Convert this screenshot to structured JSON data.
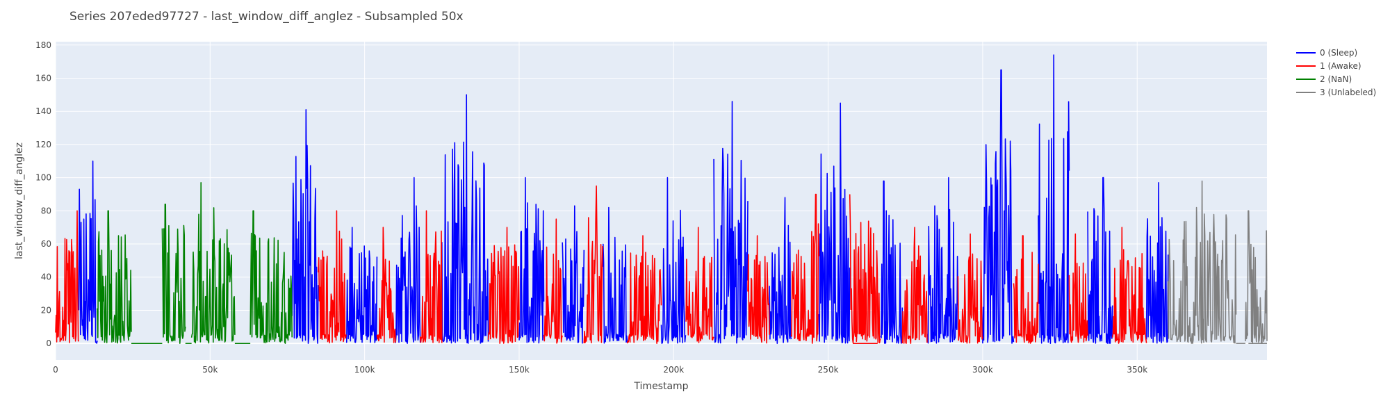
{
  "chart_data": {
    "type": "line",
    "title": "Series 207eded97727 - last_window_diff_anglez - Subsampled 50x",
    "xlabel": "Timestamp",
    "ylabel": "last_window_diff_anglez",
    "xlim": [
      0,
      392000
    ],
    "ylim": [
      -10,
      182
    ],
    "x_ticks": [
      0,
      50000,
      100000,
      150000,
      200000,
      250000,
      300000,
      350000
    ],
    "x_tick_labels": [
      "0",
      "50k",
      "100k",
      "150k",
      "200k",
      "250k",
      "300k",
      "350k"
    ],
    "y_ticks": [
      0,
      20,
      40,
      60,
      80,
      100,
      120,
      140,
      160,
      180
    ],
    "y_tick_labels": [
      "0",
      "20",
      "40",
      "60",
      "80",
      "100",
      "120",
      "140",
      "160",
      "180"
    ],
    "grid": true,
    "legend_position": "top-right",
    "series": [
      {
        "name": "0 (Sleep)",
        "color": "#0000ff",
        "segments": [
          {
            "x_range": [
              7500,
              13500
            ],
            "y_min": 0,
            "y_max": 110,
            "x_peak": 12000,
            "y_peak": 110
          },
          {
            "x_range": [
              76500,
              85000
            ],
            "y_min": 0,
            "y_max": 141,
            "x_peak": 81000,
            "y_peak": 141
          },
          {
            "x_range": [
              94000,
              104000
            ],
            "y_min": 0,
            "y_max": 70,
            "x_peak": 96000,
            "y_peak": 70
          },
          {
            "x_range": [
              110000,
              118000
            ],
            "y_min": 0,
            "y_max": 100,
            "x_peak": 116000,
            "y_peak": 100
          },
          {
            "x_range": [
              125000,
              140000
            ],
            "y_min": 0,
            "y_max": 150,
            "x_peak": 133000,
            "y_peak": 150
          },
          {
            "x_range": [
              150000,
              158000
            ],
            "y_min": 0,
            "y_max": 100,
            "x_peak": 152000,
            "y_peak": 100
          },
          {
            "x_range": [
              164000,
              171000
            ],
            "y_min": 0,
            "y_max": 83,
            "x_peak": 168000,
            "y_peak": 83
          },
          {
            "x_range": [
              177000,
              185000
            ],
            "y_min": 0,
            "y_max": 82,
            "x_peak": 179000,
            "y_peak": 82
          },
          {
            "x_range": [
              196000,
              204000
            ],
            "y_min": 0,
            "y_max": 100,
            "x_peak": 198000,
            "y_peak": 100
          },
          {
            "x_range": [
              213000,
              224000
            ],
            "y_min": 0,
            "y_max": 146,
            "x_peak": 219000,
            "y_peak": 146
          },
          {
            "x_range": [
              231000,
              238000
            ],
            "y_min": 0,
            "y_max": 88,
            "x_peak": 236000,
            "y_peak": 88
          },
          {
            "x_range": [
              247000,
              257000
            ],
            "y_min": 0,
            "y_max": 145,
            "x_peak": 254000,
            "y_peak": 145
          },
          {
            "x_range": [
              267000,
              274000
            ],
            "y_min": 0,
            "y_max": 98,
            "x_peak": 268000,
            "y_peak": 98
          },
          {
            "x_range": [
              282000,
              292000
            ],
            "y_min": 0,
            "y_max": 100,
            "x_peak": 289000,
            "y_peak": 100
          },
          {
            "x_range": [
              300000,
              310000
            ],
            "y_min": 0,
            "y_max": 165,
            "x_peak": 306000,
            "y_peak": 165
          },
          {
            "x_range": [
              318000,
              328000
            ],
            "y_min": 0,
            "y_max": 174,
            "x_peak": 323000,
            "y_peak": 174
          },
          {
            "x_range": [
              334000,
              342000
            ],
            "y_min": 0,
            "y_max": 100,
            "x_peak": 339000,
            "y_peak": 100
          },
          {
            "x_range": [
              353000,
              360000
            ],
            "y_min": 0,
            "y_max": 97,
            "x_peak": 357000,
            "y_peak": 97
          }
        ]
      },
      {
        "name": "1 (Awake)",
        "color": "#ff0000",
        "segments": [
          {
            "x_range": [
              0,
              7500
            ],
            "y_min": 0,
            "y_max": 80,
            "x_peak": 7000,
            "y_peak": 80
          },
          {
            "x_range": [
              85000,
              94000
            ],
            "y_min": 0,
            "y_max": 80,
            "x_peak": 91000,
            "y_peak": 80
          },
          {
            "x_range": [
              104000,
              110000
            ],
            "y_min": 0,
            "y_max": 70,
            "x_peak": 106000,
            "y_peak": 70
          },
          {
            "x_range": [
              118000,
              125000
            ],
            "y_min": 0,
            "y_max": 80,
            "x_peak": 120000,
            "y_peak": 80
          },
          {
            "x_range": [
              140000,
              150000
            ],
            "y_min": 0,
            "y_max": 70,
            "x_peak": 146000,
            "y_peak": 70
          },
          {
            "x_range": [
              158000,
              164000
            ],
            "y_min": 0,
            "y_max": 75,
            "x_peak": 162000,
            "y_peak": 75
          },
          {
            "x_range": [
              171000,
              177000
            ],
            "y_min": 0,
            "y_max": 95,
            "x_peak": 175000,
            "y_peak": 95
          },
          {
            "x_range": [
              185000,
              196000
            ],
            "y_min": 0,
            "y_max": 65,
            "x_peak": 190000,
            "y_peak": 65
          },
          {
            "x_range": [
              204000,
              213000
            ],
            "y_min": 0,
            "y_max": 70,
            "x_peak": 208000,
            "y_peak": 70
          },
          {
            "x_range": [
              224000,
              231000
            ],
            "y_min": 0,
            "y_max": 65,
            "x_peak": 227000,
            "y_peak": 65
          },
          {
            "x_range": [
              238000,
              247000
            ],
            "y_min": 0,
            "y_max": 90,
            "x_peak": 246000,
            "y_peak": 90
          },
          {
            "x_range": [
              257000,
              267000
            ],
            "y_min": 0,
            "y_max": 90,
            "x_peak": 257000,
            "y_peak": 90
          },
          {
            "x_range": [
              274000,
              282000
            ],
            "y_min": 0,
            "y_max": 70,
            "x_peak": 278000,
            "y_peak": 70
          },
          {
            "x_range": [
              292000,
              300000
            ],
            "y_min": 0,
            "y_max": 66,
            "x_peak": 296000,
            "y_peak": 66
          },
          {
            "x_range": [
              310000,
              318000
            ],
            "y_min": 0,
            "y_max": 65,
            "x_peak": 313000,
            "y_peak": 65
          },
          {
            "x_range": [
              328000,
              334000
            ],
            "y_min": 0,
            "y_max": 66,
            "x_peak": 330000,
            "y_peak": 66
          },
          {
            "x_range": [
              342000,
              353000
            ],
            "y_min": 0,
            "y_max": 70,
            "x_peak": 345000,
            "y_peak": 70
          }
        ]
      },
      {
        "name": "2 (NaN)",
        "color": "#008000",
        "segments": [
          {
            "x_range": [
              13500,
              24500
            ],
            "y_min": 0,
            "y_max": 80,
            "x_peak": 17000,
            "y_peak": 80
          },
          {
            "x_range": [
              34500,
              42000
            ],
            "y_min": 0,
            "y_max": 84,
            "x_peak": 35500,
            "y_peak": 84
          },
          {
            "x_range": [
              44000,
              58000
            ],
            "y_min": 0,
            "y_max": 97,
            "x_peak": 47000,
            "y_peak": 97
          },
          {
            "x_range": [
              63000,
              76500
            ],
            "y_min": 0,
            "y_max": 80,
            "x_peak": 64000,
            "y_peak": 80
          }
        ]
      },
      {
        "name": "3 (Unlabeled)",
        "color": "#808080",
        "segments": [
          {
            "x_range": [
              360000,
              382000
            ],
            "y_min": 0,
            "y_max": 98,
            "x_peak": 371000,
            "y_peak": 98
          },
          {
            "x_range": [
              385000,
              392000
            ],
            "y_min": 0,
            "y_max": 80,
            "x_peak": 386000,
            "y_peak": 80
          }
        ]
      }
    ]
  }
}
